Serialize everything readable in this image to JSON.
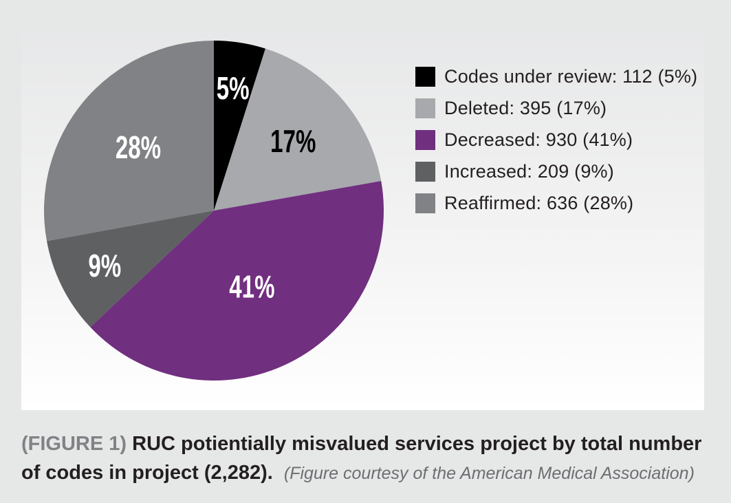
{
  "chart_data": {
    "type": "pie",
    "total": 2282,
    "slices": [
      {
        "label": "Codes under review",
        "value": 112,
        "percent_label": "5%",
        "legend": "Codes under review: 112 (5%)",
        "color": "#000000",
        "text_color": "#ffffff"
      },
      {
        "label": "Deleted",
        "value": 395,
        "percent_label": "17%",
        "legend": "Deleted: 395 (17%)",
        "color": "#a7a9ac",
        "text_color": "#000000"
      },
      {
        "label": "Decreased",
        "value": 930,
        "percent_label": "41%",
        "legend": "Decreased: 930 (41%)",
        "color": "#702f7f",
        "text_color": "#ffffff"
      },
      {
        "label": "Increased",
        "value": 209,
        "percent_label": "9%",
        "legend": "Increased: 209 (9%)",
        "color": "#5f6062",
        "text_color": "#ffffff"
      },
      {
        "label": "Reaffirmed",
        "value": 636,
        "percent_label": "28%",
        "legend": "Reaffirmed: 636 (28%)",
        "color": "#808285",
        "text_color": "#ffffff"
      }
    ],
    "legend_position": "right"
  },
  "caption": {
    "figure_number": "(FIGURE 1)",
    "text": "RUC potientially misvalued services project by total number of codes in project (2,282).",
    "credit": "(Figure courtesy of the American Medical Association)"
  }
}
